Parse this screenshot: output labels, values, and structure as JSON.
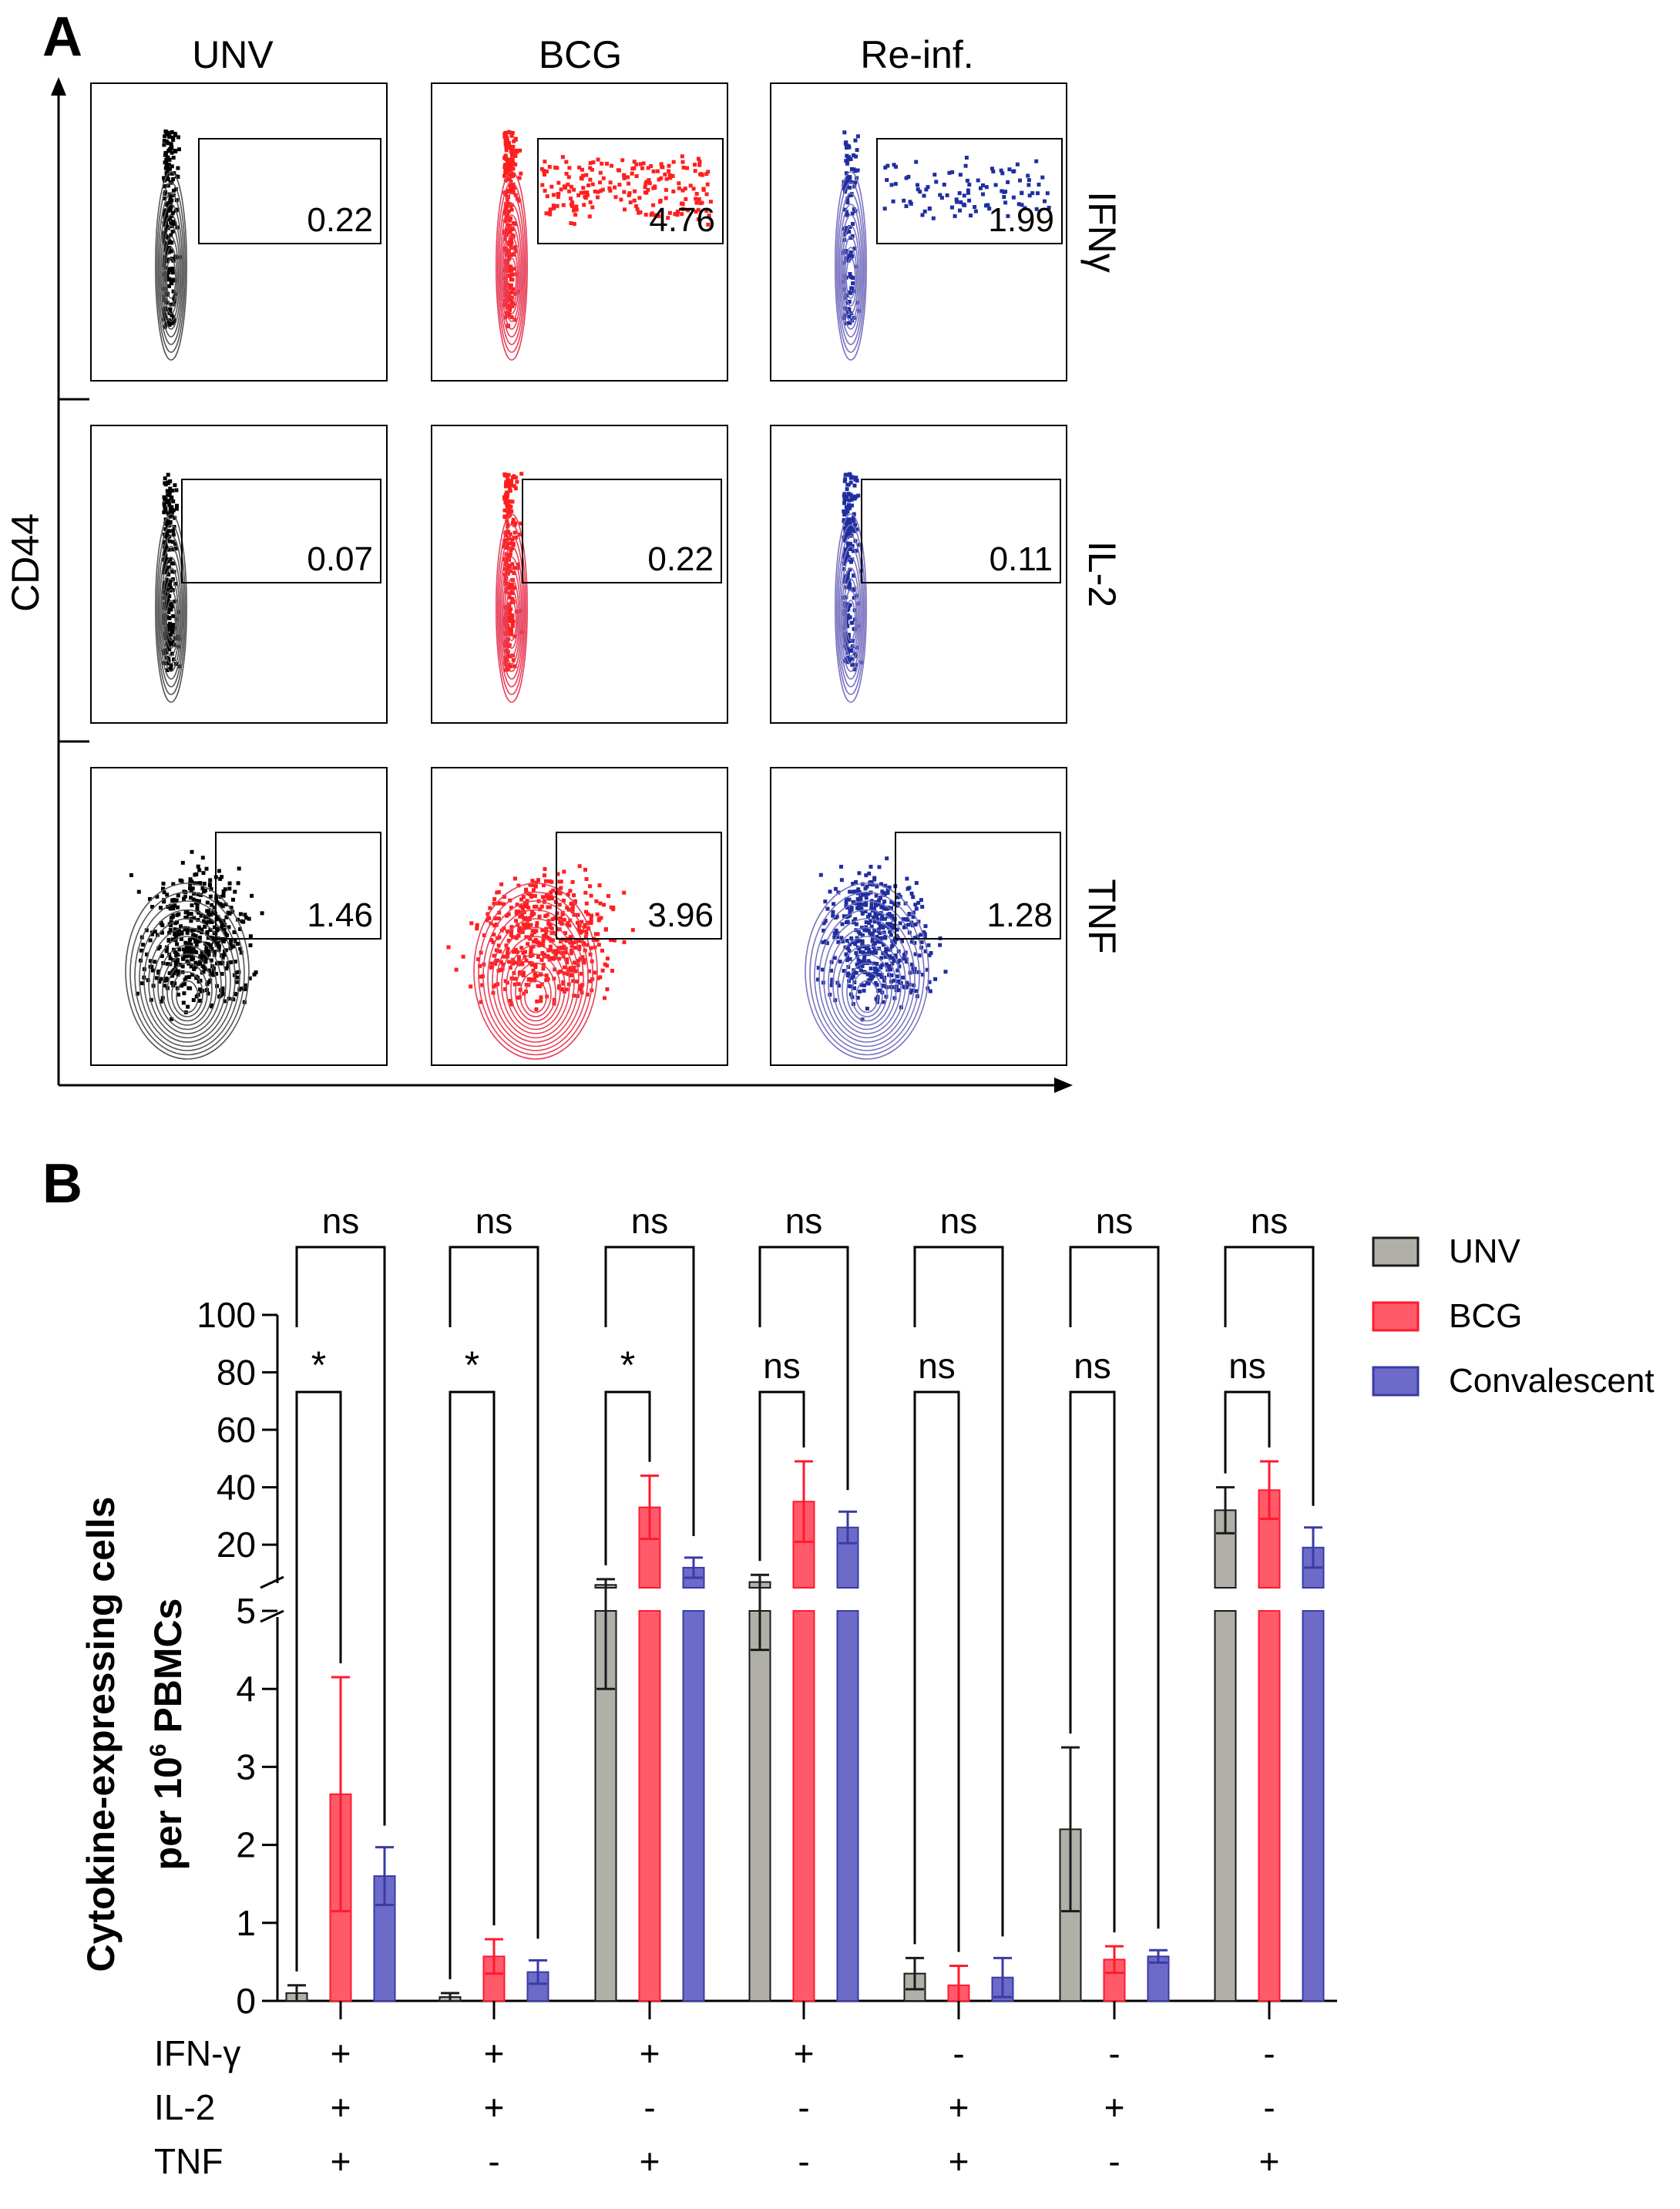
{
  "panel_a": {
    "label": "A",
    "columns": [
      "UNV",
      "BCG",
      "Re-inf."
    ],
    "rows": [
      "IFNγ",
      "IL-2",
      "TNF"
    ],
    "y_axis_label": "CD44",
    "gate_values": [
      [
        "0.22",
        "4.76",
        "1.99"
      ],
      [
        "0.07",
        "0.22",
        "0.11"
      ],
      [
        "1.46",
        "3.96",
        "1.28"
      ]
    ],
    "colors": [
      "#000000",
      "#ff1f1f",
      "#1f2f9f"
    ]
  },
  "chart_data": {
    "type": "bar",
    "panel_label": "B",
    "ylabel_line1": "Cytokine-expressing cells",
    "ylabel_line2": "per 10",
    "ylabel_sup": "6",
    "ylabel_line2_end": " PBMCs",
    "y_axis": {
      "broken": true,
      "lower_range": [
        0,
        5
      ],
      "lower_ticks": [
        0,
        1,
        2,
        3,
        4,
        5
      ],
      "upper_range": [
        5,
        100
      ],
      "upper_ticks": [
        20,
        40,
        60,
        80,
        100
      ]
    },
    "categories": [
      "+/+/+",
      "+/+/-",
      "+/-/+",
      "+/-/-",
      "-/+/+",
      "-/+/-",
      "-/-/+"
    ],
    "row_labels": [
      "IFN-γ",
      "IL-2",
      "TNF"
    ],
    "row_signs": [
      [
        "+",
        "+",
        "+",
        "+",
        "-",
        "-",
        "-"
      ],
      [
        "+",
        "+",
        "-",
        "-",
        "+",
        "+",
        "-"
      ],
      [
        "+",
        "-",
        "+",
        "-",
        "+",
        "-",
        "+"
      ]
    ],
    "series": [
      {
        "name": "UNV",
        "color": "#b0b0a8",
        "edge": "#1a1a1a",
        "values": [
          0.1,
          0.05,
          6,
          7,
          0.35,
          2.2,
          32
        ],
        "errors": [
          0.1,
          0.05,
          2,
          2.5,
          0.2,
          1.05,
          8
        ]
      },
      {
        "name": "BCG",
        "color": "#ff5a6a",
        "edge": "#ff1a2e",
        "values": [
          2.65,
          0.57,
          33,
          35,
          0.2,
          0.53,
          39
        ],
        "errors": [
          1.5,
          0.22,
          11,
          14,
          0.25,
          0.17,
          10
        ]
      },
      {
        "name": "Convalescent",
        "color": "#6c6cc8",
        "edge": "#3a3aa8",
        "values": [
          1.6,
          0.37,
          12,
          26,
          0.3,
          0.57,
          19
        ],
        "errors": [
          0.37,
          0.15,
          3.5,
          5.5,
          0.25,
          0.08,
          7
        ]
      }
    ],
    "significance": {
      "unv_vs_bcg": [
        "*",
        "*",
        "*",
        "ns",
        "ns",
        "ns",
        "ns"
      ],
      "unv_vs_conv": [
        "ns",
        "ns",
        "ns",
        "ns",
        "ns",
        "ns",
        "ns"
      ]
    },
    "legend_position": "top-right"
  }
}
